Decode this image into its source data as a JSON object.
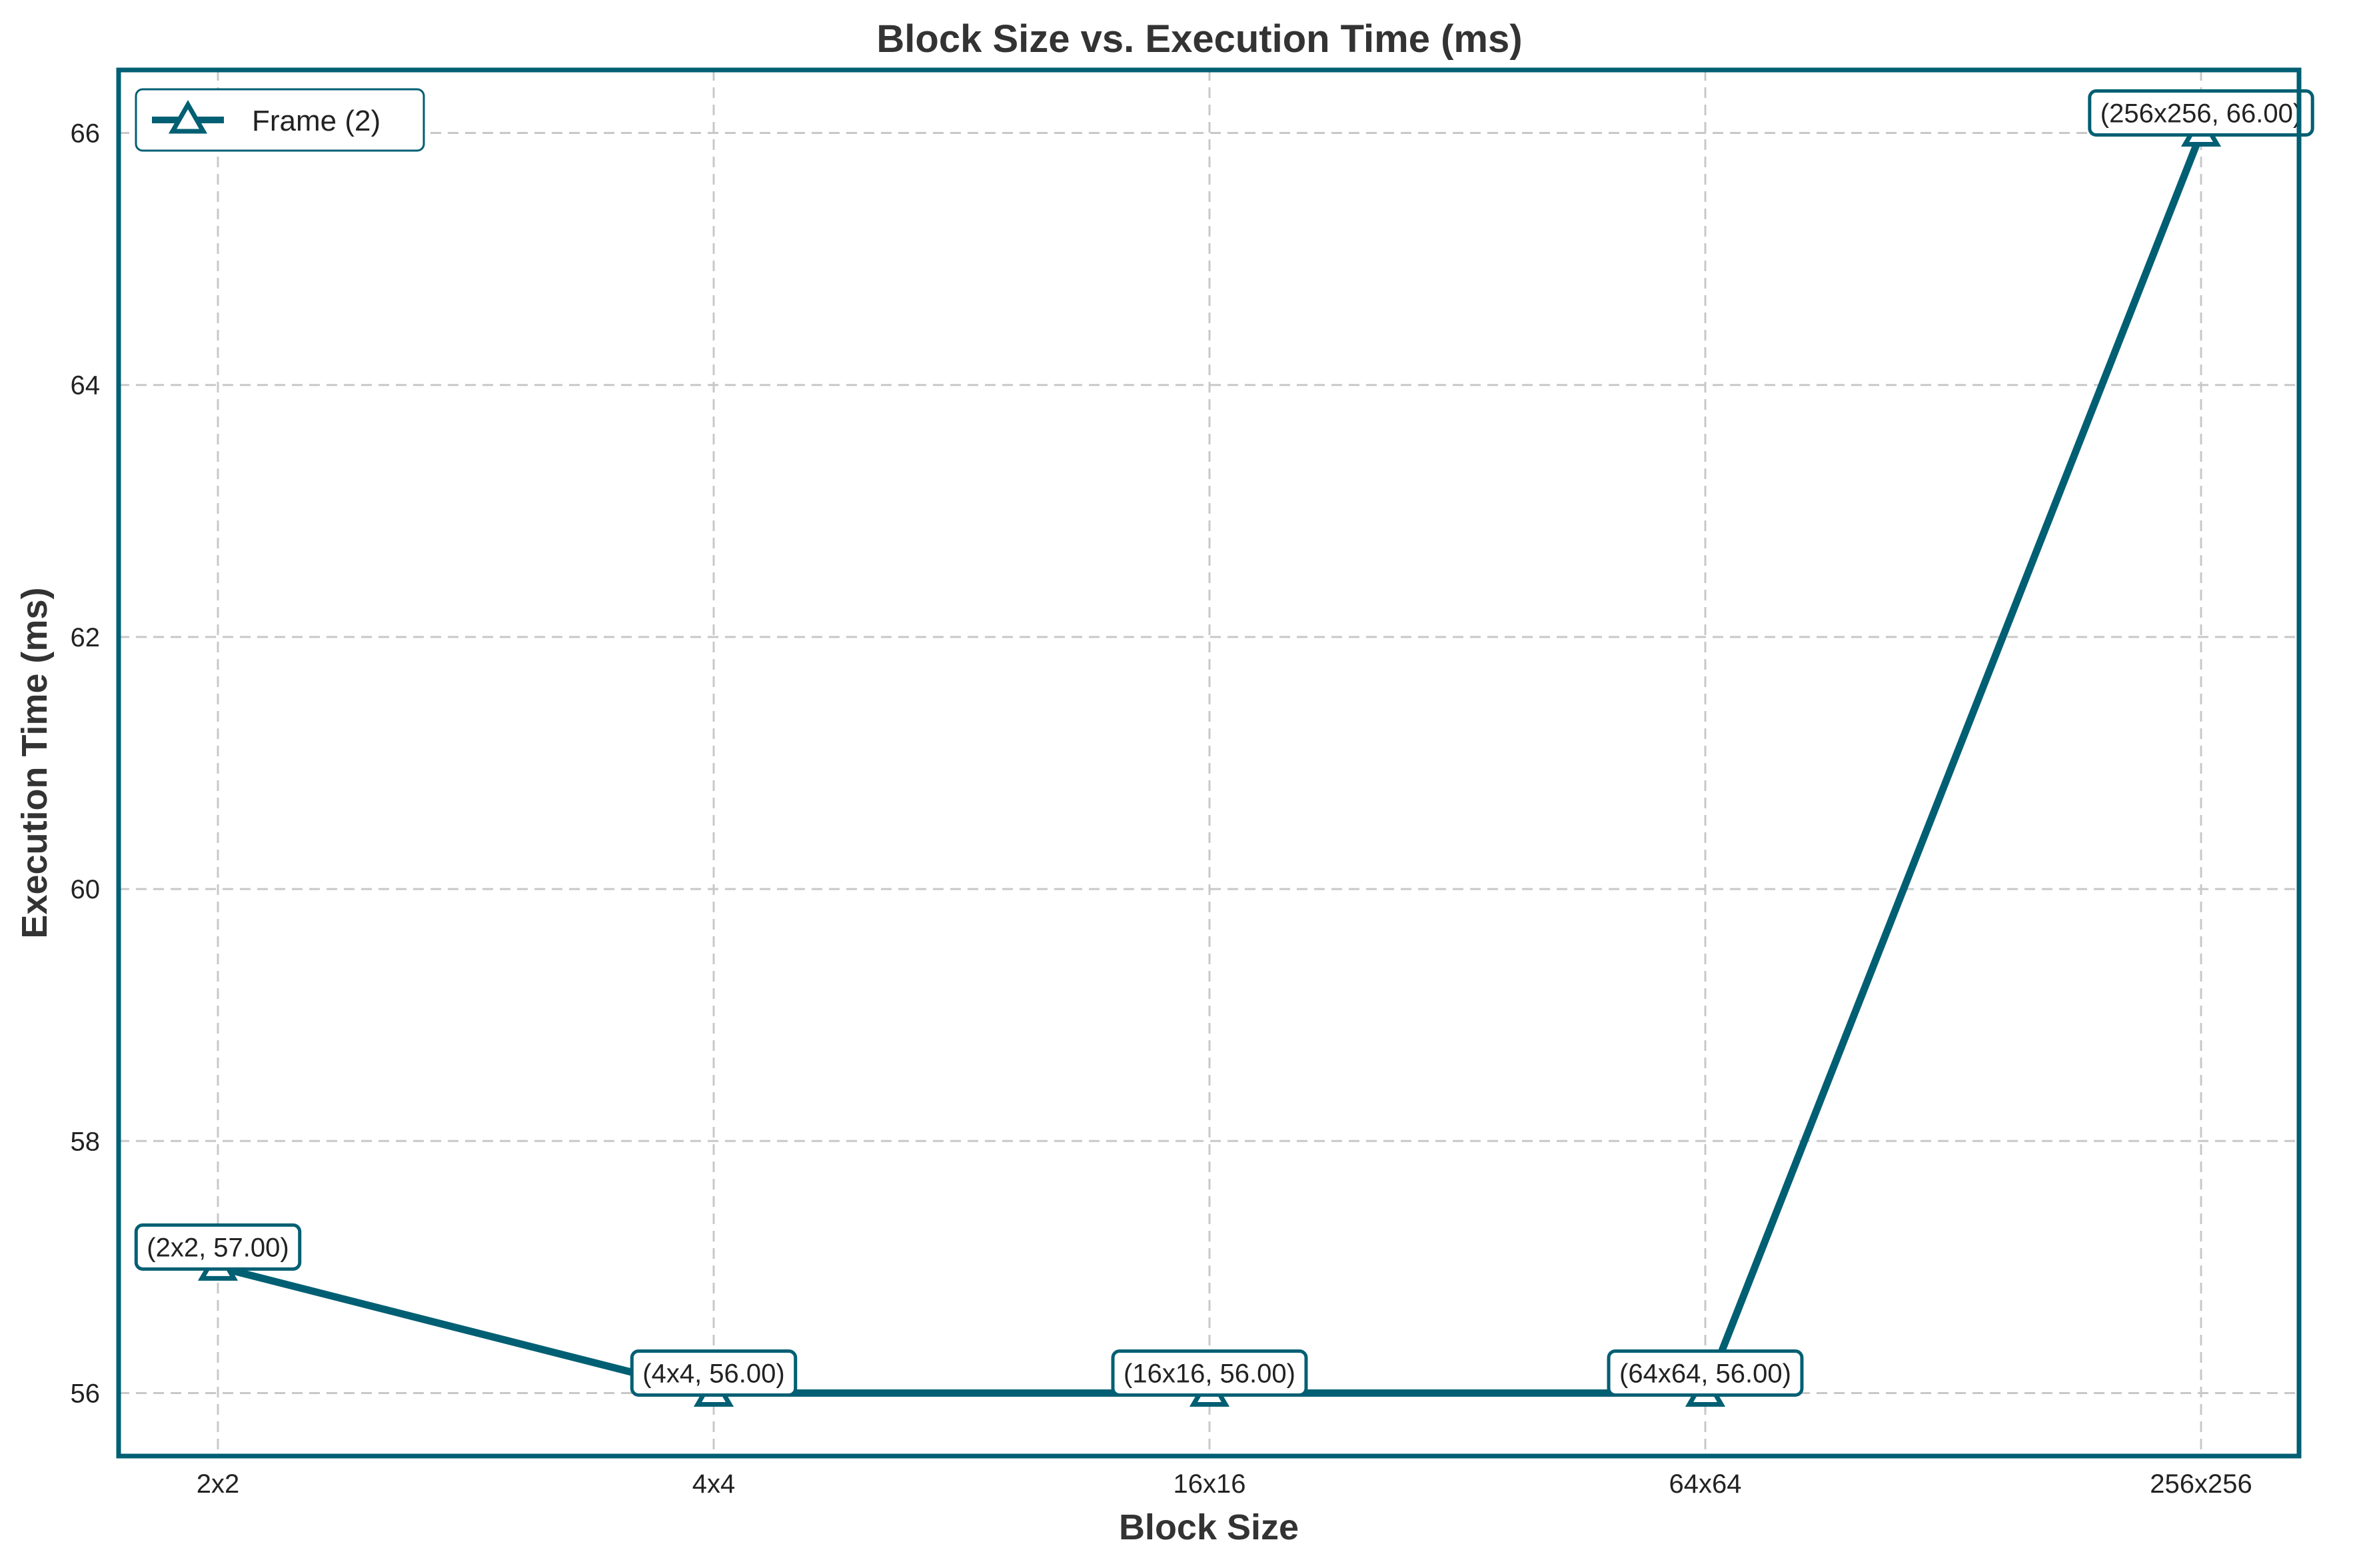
{
  "chart_data": {
    "type": "line",
    "title": "Block Size vs. Execution Time (ms)",
    "xlabel": "Block Size",
    "ylabel": "Execution Time (ms)",
    "categories": [
      "2x2",
      "4x4",
      "16x16",
      "64x64",
      "256x256"
    ],
    "series": [
      {
        "name": "Frame (2)",
        "values": [
          57.0,
          56.0,
          56.0,
          56.0,
          66.0
        ],
        "color": "#005f73",
        "marker": "triangle-up"
      }
    ],
    "annotations": [
      "(2x2, 57.00)",
      "(4x4, 56.00)",
      "(16x16, 56.00)",
      "(64x64, 56.00)",
      "(256x256, 66.00)"
    ],
    "yticks": [
      56,
      58,
      60,
      62,
      64,
      66
    ],
    "ylim": [
      55.5,
      66.5
    ],
    "grid": true,
    "legend_position": "top-left",
    "colors": {
      "frame": "#005f73",
      "grid": "#c8c8c8",
      "text": "#333333"
    }
  }
}
